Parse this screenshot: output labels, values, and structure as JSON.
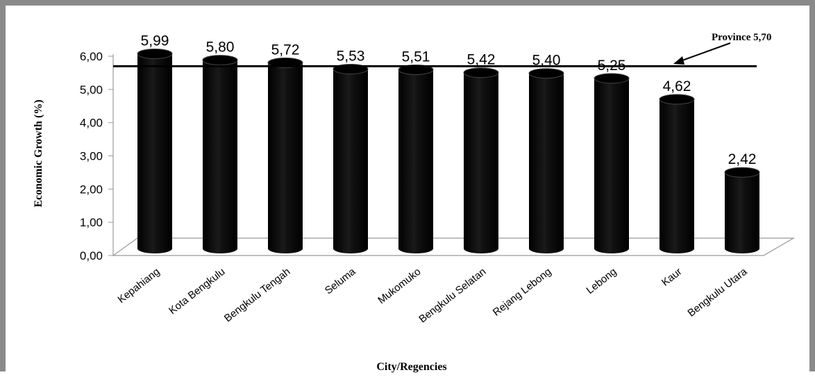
{
  "chart_data": {
    "type": "bar",
    "categories": [
      "Kepahiang",
      "Kota Bengkulu",
      "Bengkulu Tengah",
      "Seluma",
      "Mukomuko",
      "Bengkulu Selatan",
      "Rejang Lebong",
      "Lebong",
      "Kaur",
      "Bengkulu Utara"
    ],
    "values": [
      5.99,
      5.8,
      5.72,
      5.53,
      5.51,
      5.42,
      5.4,
      5.25,
      4.62,
      2.42
    ],
    "value_labels": [
      "5,99",
      "5,80",
      "5,72",
      "5,53",
      "5,51",
      "5,42",
      "5,40",
      "5,25",
      "4,62",
      "2,42"
    ],
    "title": "",
    "xlabel": "City/Regencies",
    "ylabel": "Economic Growth (%)",
    "ylim": [
      0,
      6
    ],
    "yticks": [
      0,
      1,
      2,
      3,
      4,
      5,
      6
    ],
    "ytick_labels": [
      "0,00",
      "1,00",
      "2,00",
      "3,00",
      "4,00",
      "5,00",
      "6,00"
    ],
    "reference_line": {
      "value": 5.7,
      "label": "Province 5,70"
    },
    "bar_color": "#000000",
    "grid": false,
    "legend": "none"
  }
}
